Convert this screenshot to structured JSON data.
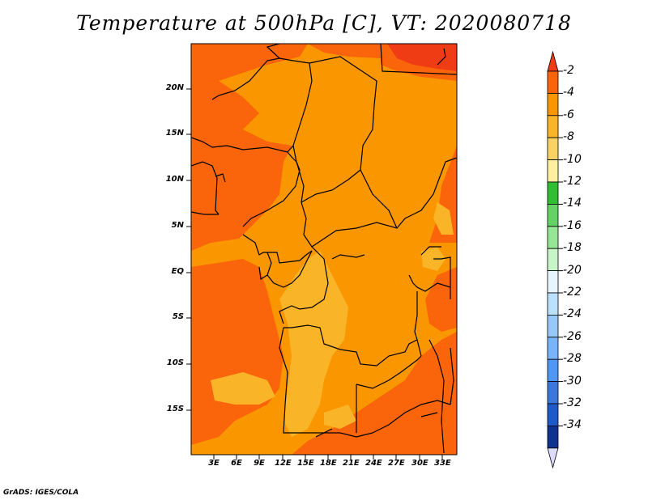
{
  "title": "Temperature at 500hPa [C], VT: 2020080718",
  "credit": "GrADS: IGES/COLA",
  "lat_labels": [
    "20N",
    "15N",
    "10N",
    "5N",
    "EQ",
    "5S",
    "10S",
    "15S"
  ],
  "lon_labels": [
    "3E",
    "6E",
    "9E",
    "12E",
    "15E",
    "18E",
    "21E",
    "24E",
    "27E",
    "30E",
    "33E"
  ],
  "colorbar": {
    "labels": [
      "-2",
      "-4",
      "-6",
      "-8",
      "-10",
      "-12",
      "-14",
      "-16",
      "-18",
      "-20",
      "-22",
      "-24",
      "-26",
      "-28",
      "-30",
      "-32",
      "-34"
    ],
    "colors": [
      "#f03c14",
      "#fa640a",
      "#fa9600",
      "#fab428",
      "#fad264",
      "#fff0a0",
      "#32be32",
      "#64d264",
      "#96e696",
      "#c8f5c8",
      "#e6f5ff",
      "#bce1ff",
      "#96c8fa",
      "#78b4fa",
      "#5096f5",
      "#3c78dc",
      "#1e5ac8",
      "#0f3291",
      "#dcdcff"
    ]
  },
  "map_colors": {
    "orange": "#fa9600",
    "dark_orange": "#fa640a",
    "red_orange": "#f03c14",
    "light_orange": "#fab428",
    "border": "#000000"
  }
}
